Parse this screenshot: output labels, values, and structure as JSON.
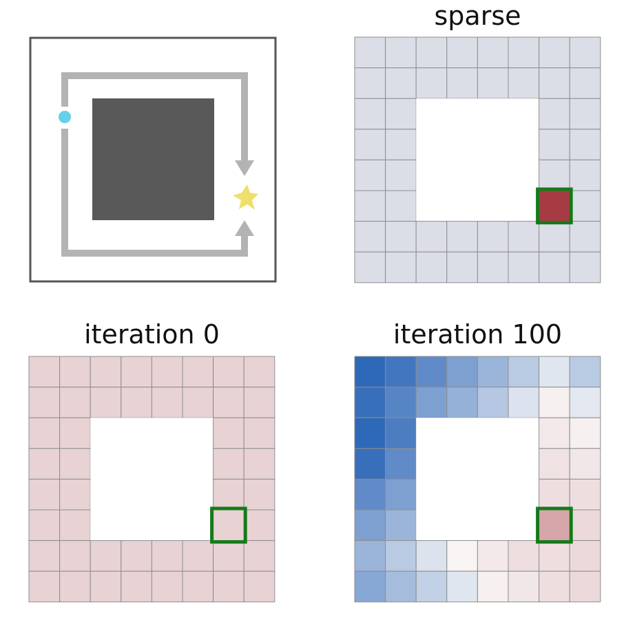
{
  "panels": {
    "sparse": {
      "title": "sparse",
      "grid_values": [
        [
          0,
          0,
          0,
          0,
          0,
          0,
          0,
          0
        ],
        [
          0,
          0,
          0,
          0,
          0,
          0,
          0,
          0
        ],
        [
          0,
          0,
          null,
          null,
          null,
          null,
          0,
          0
        ],
        [
          0,
          0,
          null,
          null,
          null,
          null,
          0,
          0
        ],
        [
          0,
          0,
          null,
          null,
          null,
          null,
          0,
          0
        ],
        [
          0,
          0,
          null,
          null,
          null,
          null,
          1,
          0
        ],
        [
          0,
          0,
          0,
          0,
          0,
          0,
          0,
          0
        ],
        [
          0,
          0,
          0,
          0,
          0,
          0,
          0,
          0
        ]
      ]
    },
    "iter0": {
      "title": "iteration 0",
      "grid_values": [
        [
          0.1,
          0.1,
          0.1,
          0.1,
          0.1,
          0.1,
          0.1,
          0.1
        ],
        [
          0.1,
          0.1,
          0.1,
          0.1,
          0.1,
          0.1,
          0.1,
          0.1
        ],
        [
          0.1,
          0.1,
          null,
          null,
          null,
          null,
          0.1,
          0.1
        ],
        [
          0.1,
          0.1,
          null,
          null,
          null,
          null,
          0.1,
          0.1
        ],
        [
          0.1,
          0.1,
          null,
          null,
          null,
          null,
          0.1,
          0.1
        ],
        [
          0.1,
          0.1,
          null,
          null,
          null,
          null,
          0.1,
          0.1
        ],
        [
          0.1,
          0.1,
          0.1,
          0.1,
          0.1,
          0.1,
          0.1,
          0.1
        ],
        [
          0.1,
          0.1,
          0.1,
          0.1,
          0.1,
          0.1,
          0.1,
          0.1
        ]
      ]
    },
    "iter100": {
      "title": "iteration 100",
      "grid_values": [
        [
          -1.0,
          -0.9,
          -0.75,
          -0.6,
          -0.45,
          -0.3,
          -0.1,
          -0.3
        ],
        [
          -0.95,
          -0.8,
          -0.6,
          -0.48,
          -0.32,
          -0.12,
          0.02,
          -0.08
        ],
        [
          -1.0,
          -0.85,
          null,
          null,
          null,
          null,
          0.05,
          0.02
        ],
        [
          -0.95,
          -0.75,
          null,
          null,
          null,
          null,
          0.08,
          0.06
        ],
        [
          -0.75,
          -0.6,
          null,
          null,
          null,
          null,
          0.1,
          0.1
        ],
        [
          -0.6,
          -0.45,
          null,
          null,
          null,
          null,
          0.35,
          0.12
        ],
        [
          -0.45,
          -0.3,
          -0.12,
          0.0,
          0.05,
          0.1,
          0.1,
          0.12
        ],
        [
          -0.55,
          -0.4,
          -0.25,
          -0.1,
          0.02,
          0.06,
          0.1,
          0.12
        ]
      ]
    }
  },
  "goal_cell": {
    "row": 5,
    "col": 6
  },
  "colors": {
    "sparse_empty": "#dbdee6",
    "sparse_goal": "#a73b43",
    "iter0_cell": "#e8d2d3",
    "goal_outline": "#157a1a",
    "grid_line": "#8d8d8d",
    "wall": "#595959",
    "border": "#555555",
    "path_arrow": "#b3b3b3",
    "agent": "#65d0ea",
    "goal_star": "#efdf6b",
    "neg_color": "#2e68b8",
    "pos_color": "#c8858c"
  },
  "env_icons": [
    "agent-dot-icon",
    "goal-star-icon",
    "arrow-down-icon",
    "arrow-up-icon"
  ]
}
